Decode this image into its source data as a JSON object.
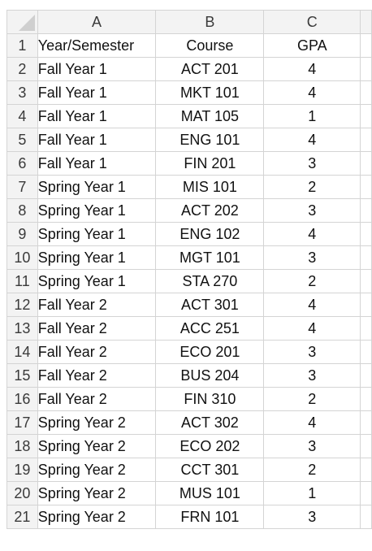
{
  "columns": [
    "A",
    "B",
    "C"
  ],
  "rows": [
    {
      "n": "1",
      "a": "Year/Semester",
      "b": "Course",
      "c": "GPA"
    },
    {
      "n": "2",
      "a": "Fall Year 1",
      "b": "ACT 201",
      "c": "4"
    },
    {
      "n": "3",
      "a": "Fall Year 1",
      "b": "MKT 101",
      "c": "4"
    },
    {
      "n": "4",
      "a": "Fall Year 1",
      "b": "MAT 105",
      "c": "1"
    },
    {
      "n": "5",
      "a": "Fall Year 1",
      "b": "ENG 101",
      "c": "4"
    },
    {
      "n": "6",
      "a": "Fall Year 1",
      "b": "FIN 201",
      "c": "3"
    },
    {
      "n": "7",
      "a": "Spring Year 1",
      "b": "MIS 101",
      "c": "2"
    },
    {
      "n": "8",
      "a": "Spring Year 1",
      "b": "ACT 202",
      "c": "3"
    },
    {
      "n": "9",
      "a": "Spring Year 1",
      "b": "ENG 102",
      "c": "4"
    },
    {
      "n": "10",
      "a": "Spring Year 1",
      "b": "MGT 101",
      "c": "3"
    },
    {
      "n": "11",
      "a": "Spring Year 1",
      "b": "STA 270",
      "c": "2"
    },
    {
      "n": "12",
      "a": "Fall Year 2",
      "b": "ACT 301",
      "c": "4"
    },
    {
      "n": "13",
      "a": "Fall Year 2",
      "b": "ACC 251",
      "c": "4"
    },
    {
      "n": "14",
      "a": "Fall Year 2",
      "b": "ECO 201",
      "c": "3"
    },
    {
      "n": "15",
      "a": "Fall Year 2",
      "b": "BUS 204",
      "c": "3"
    },
    {
      "n": "16",
      "a": "Fall Year 2",
      "b": "FIN 310",
      "c": "2"
    },
    {
      "n": "17",
      "a": "Spring Year 2",
      "b": "ACT 302",
      "c": "4"
    },
    {
      "n": "18",
      "a": "Spring Year 2",
      "b": "ECO 202",
      "c": "3"
    },
    {
      "n": "19",
      "a": "Spring Year 2",
      "b": "CCT 301",
      "c": "2"
    },
    {
      "n": "20",
      "a": "Spring Year 2",
      "b": "MUS 101",
      "c": "1"
    },
    {
      "n": "21",
      "a": "Spring Year 2",
      "b": "FRN 101",
      "c": "3"
    }
  ]
}
